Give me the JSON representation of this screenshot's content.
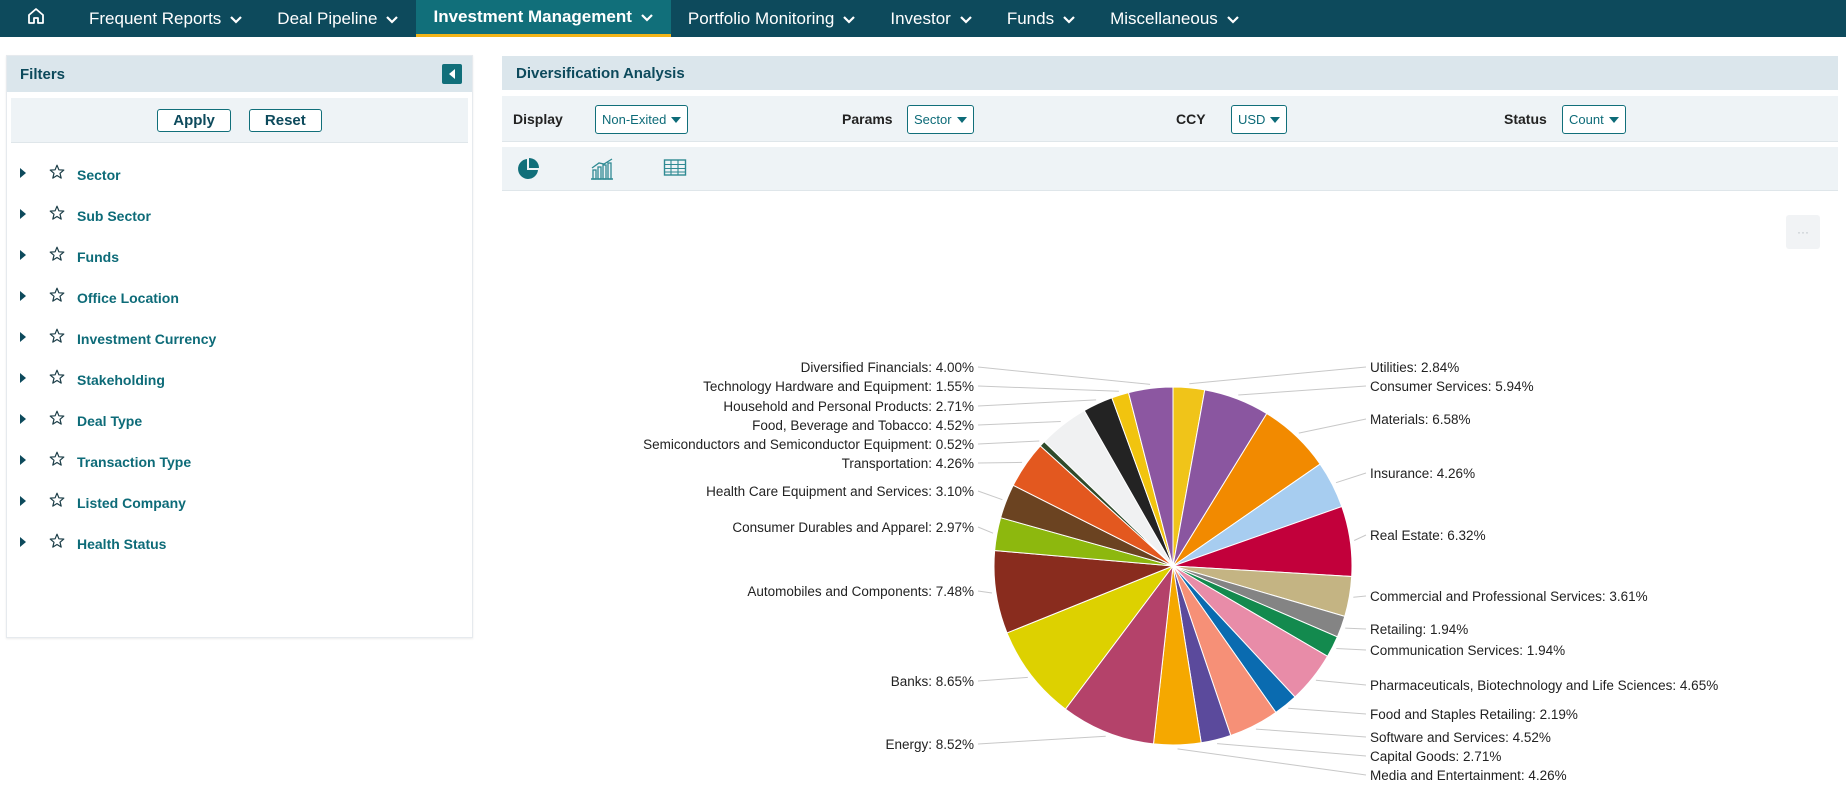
{
  "nav": {
    "home_icon": "home-icon",
    "items": [
      {
        "label": "Frequent Reports"
      },
      {
        "label": "Deal Pipeline"
      },
      {
        "label": "Investment Management",
        "active": true
      },
      {
        "label": "Portfolio Monitoring"
      },
      {
        "label": "Investor"
      },
      {
        "label": "Funds"
      },
      {
        "label": "Miscellaneous"
      }
    ]
  },
  "filters": {
    "title": "Filters",
    "apply_label": "Apply",
    "reset_label": "Reset",
    "items": [
      {
        "label": "Sector"
      },
      {
        "label": "Sub Sector"
      },
      {
        "label": "Funds"
      },
      {
        "label": "Office Location"
      },
      {
        "label": "Investment Currency"
      },
      {
        "label": "Stakeholding"
      },
      {
        "label": "Deal Type"
      },
      {
        "label": "Transaction Type"
      },
      {
        "label": "Listed Company"
      },
      {
        "label": "Health Status"
      }
    ]
  },
  "analysis": {
    "title": "Diversification Analysis",
    "controls": {
      "display": {
        "label": "Display",
        "value": "Non-Exited"
      },
      "params": {
        "label": "Params",
        "value": "Sector"
      },
      "ccy": {
        "label": "CCY",
        "value": "USD"
      },
      "status": {
        "label": "Status",
        "value": "Count"
      }
    },
    "views": [
      "pie-chart-icon",
      "bar-chart-icon",
      "table-icon"
    ],
    "menu_icon": "menu-icon"
  },
  "colors": {
    "nav_bg": "#0d4a5c",
    "nav_active": "#116f7a",
    "accent": "#f2b418",
    "teal_text": "#0d6b78"
  },
  "chart_data": {
    "type": "pie",
    "unit": "%",
    "slices": [
      {
        "label": "Utilities",
        "value": 2.84,
        "color": "#f0c419"
      },
      {
        "label": "Consumer Services",
        "value": 5.94,
        "color": "#8a56a0"
      },
      {
        "label": "Materials",
        "value": 6.58,
        "color": "#f28a00"
      },
      {
        "label": "Insurance",
        "value": 4.26,
        "color": "#a7cdf0"
      },
      {
        "label": "Real Estate",
        "value": 6.32,
        "color": "#c2003b"
      },
      {
        "label": "Commercial and Professional Services",
        "value": 3.61,
        "color": "#c4b483"
      },
      {
        "label": "Retailing",
        "value": 1.94,
        "color": "#848484"
      },
      {
        "label": "Communication Services",
        "value": 1.94,
        "color": "#138a4e"
      },
      {
        "label": "Pharmaceuticals, Biotechnology and Life Sciences",
        "value": 4.65,
        "color": "#e88ca8"
      },
      {
        "label": "Food and Staples Retailing",
        "value": 2.19,
        "color": "#0a6bb0"
      },
      {
        "label": "Software and Services",
        "value": 4.52,
        "color": "#f69077"
      },
      {
        "label": "Capital Goods",
        "value": 2.71,
        "color": "#5b4a9c"
      },
      {
        "label": "Media and Entertainment",
        "value": 4.26,
        "color": "#f5a800"
      },
      {
        "label": "Energy",
        "value": 8.52,
        "color": "#b4426a"
      },
      {
        "label": "Banks",
        "value": 8.65,
        "color": "#ddd100"
      },
      {
        "label": "Automobiles and Components",
        "value": 7.48,
        "color": "#892c1e"
      },
      {
        "label": "Consumer Durables and Apparel",
        "value": 2.97,
        "color": "#8db80e"
      },
      {
        "label": "Health Care Equipment and Services",
        "value": 3.1,
        "color": "#6b4321"
      },
      {
        "label": "Transportation",
        "value": 4.26,
        "color": "#e3581f"
      },
      {
        "label": "Semiconductors and Semiconductor Equipment",
        "value": 0.52,
        "color": "#2f4a2a"
      },
      {
        "label": "Food, Beverage and Tobacco",
        "value": 4.52,
        "color": "#f0f1f2"
      },
      {
        "label": "Household and Personal Products",
        "value": 2.71,
        "color": "#232323"
      },
      {
        "label": "Technology Hardware and Equipment",
        "value": 1.55,
        "color": "#f1c40f"
      },
      {
        "label": "Diversified Financials",
        "value": 4.0,
        "color": "#8c57a1"
      }
    ],
    "labels": [
      "Utilities: 2.84%",
      "Consumer Services: 5.94%",
      "Materials: 6.58%",
      "Insurance: 4.26%",
      "Real Estate: 6.32%",
      "Commercial and Professional Services: 3.61%",
      "Retailing: 1.94%",
      "Communication Services: 1.94%",
      "Pharmaceuticals, Biotechnology and Life Sciences: 4.65%",
      "Food and Staples Retailing: 2.19%",
      "Software and Services: 4.52%",
      "Capital Goods: 2.71%",
      "Media and Entertainment: 4.26%",
      "Energy: 8.52%",
      "Banks: 8.65%",
      "Automobiles and Components: 7.48%",
      "Consumer Durables and Apparel: 2.97%",
      "Health Care Equipment and Services: 3.10%",
      "Transportation: 4.26%",
      "Semiconductors and Semiconductor Equipment: 0.52%",
      "Food, Beverage and Tobacco: 4.52%",
      "Household and Personal Products: 2.71%",
      "Technology Hardware and Equipment: 1.55%",
      "Diversified Financials: 4.00%"
    ],
    "legend": "none"
  }
}
